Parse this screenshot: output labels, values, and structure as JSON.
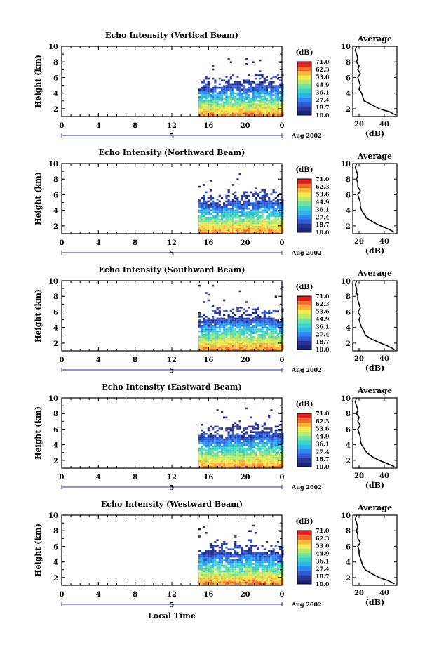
{
  "figure": {
    "xlabel": "Local Time",
    "date_label": "Aug 2002",
    "day_label": "5",
    "x_ticks": [
      "0",
      "4",
      "8",
      "12",
      "16",
      "20",
      "0"
    ],
    "y_label": "Height (km)",
    "y_ticks": [
      "2",
      "4",
      "6",
      "8",
      "10"
    ],
    "colorbar_title": "(dB)",
    "colorbar_ticks": [
      "71.0",
      "62.3",
      "53.6",
      "44.9",
      "36.1",
      "27.4",
      "18.7",
      "10.0"
    ],
    "average_title": "Average",
    "average_xlabel": "(dB)"
  },
  "chart_data": [
    {
      "type": "heatmap",
      "title": "Echo Intensity (Vertical Beam)",
      "xlabel": "",
      "ylabel": "Height (km)",
      "xlim": [
        0,
        24
      ],
      "ylim": [
        1,
        10
      ],
      "data_start_hour": 14.9,
      "echo_top_km": [
        4.6,
        4.8,
        5.0,
        4.7,
        5.1,
        4.9
      ],
      "scatter_top_km": 8.5,
      "colorbar": {
        "min": 10.0,
        "max": 71.0,
        "unit": "dB"
      },
      "average_profile": {
        "xlabel": "(dB)",
        "xticks": [
          20,
          40
        ],
        "xlim": [
          15,
          50
        ],
        "ylim": [
          1,
          10
        ],
        "height_km": [
          1.2,
          1.6,
          2.0,
          2.5,
          3.0,
          3.5,
          4.0,
          4.5,
          5.0,
          5.5,
          6.0,
          6.5,
          7.0,
          7.5,
          8.0,
          8.5,
          9.0,
          9.5,
          10.0
        ],
        "value_db": [
          49,
          44,
          36,
          30,
          24,
          23,
          22,
          20,
          21,
          20,
          19,
          21,
          19,
          20,
          18,
          19,
          18,
          17,
          18
        ]
      }
    },
    {
      "type": "heatmap",
      "title": "Echo Intensity (Northward Beam)",
      "xlabel": "",
      "ylabel": "Height (km)",
      "xlim": [
        0,
        24
      ],
      "ylim": [
        1,
        10
      ],
      "data_start_hour": 14.9,
      "echo_top_km": [
        5.0,
        4.8,
        5.2,
        4.9,
        5.3,
        5.1
      ],
      "scatter_top_km": 9.2,
      "colorbar": {
        "min": 10.0,
        "max": 71.0,
        "unit": "dB"
      },
      "average_profile": {
        "xlabel": "(dB)",
        "xticks": [
          20,
          40
        ],
        "xlim": [
          15,
          50
        ],
        "ylim": [
          1,
          10
        ],
        "height_km": [
          1.2,
          1.6,
          2.0,
          2.5,
          3.0,
          3.5,
          4.0,
          4.5,
          5.0,
          5.5,
          6.0,
          6.5,
          7.0,
          7.5,
          8.0,
          8.5,
          9.0,
          9.5,
          10.0
        ],
        "value_db": [
          48,
          43,
          37,
          31,
          26,
          24,
          22,
          21,
          21,
          20,
          19,
          21,
          19,
          19,
          18,
          19,
          18,
          17,
          18
        ]
      }
    },
    {
      "type": "heatmap",
      "title": "Echo Intensity (Southward Beam)",
      "xlabel": "",
      "ylabel": "Height (km)",
      "xlim": [
        0,
        24
      ],
      "ylim": [
        1,
        10
      ],
      "data_start_hour": 14.9,
      "echo_top_km": [
        4.8,
        5.0,
        5.4,
        5.1,
        5.2,
        4.9
      ],
      "scatter_top_km": 9.5,
      "colorbar": {
        "min": 10.0,
        "max": 71.0,
        "unit": "dB"
      },
      "average_profile": {
        "xlabel": "(dB)",
        "xticks": [
          20,
          40
        ],
        "xlim": [
          15,
          50
        ],
        "ylim": [
          1,
          10
        ],
        "height_km": [
          1.2,
          1.6,
          2.0,
          2.5,
          3.0,
          3.5,
          4.0,
          4.5,
          5.0,
          5.5,
          6.0,
          6.5,
          7.0,
          7.5,
          8.0,
          8.5,
          9.0,
          9.5,
          10.0
        ],
        "value_db": [
          48,
          43,
          37,
          30,
          25,
          24,
          22,
          21,
          20,
          21,
          19,
          21,
          20,
          19,
          19,
          18,
          18,
          17,
          18
        ]
      }
    },
    {
      "type": "heatmap",
      "title": "Echo Intensity (Eastward Beam)",
      "xlabel": "",
      "ylabel": "Height (km)",
      "xlim": [
        0,
        24
      ],
      "ylim": [
        1,
        10
      ],
      "data_start_hour": 14.9,
      "echo_top_km": [
        5.1,
        4.9,
        5.3,
        5.0,
        5.4,
        5.2
      ],
      "scatter_top_km": 8.8,
      "colorbar": {
        "min": 10.0,
        "max": 71.0,
        "unit": "dB"
      },
      "average_profile": {
        "xlabel": "(dB)",
        "xticks": [
          20,
          40
        ],
        "xlim": [
          15,
          50
        ],
        "ylim": [
          1,
          10
        ],
        "height_km": [
          1.2,
          1.6,
          2.0,
          2.5,
          3.0,
          3.5,
          4.0,
          4.5,
          5.0,
          5.5,
          6.0,
          6.5,
          7.0,
          7.5,
          8.0,
          8.5,
          9.0,
          9.5,
          10.0
        ],
        "value_db": [
          48,
          42,
          36,
          30,
          26,
          24,
          22,
          21,
          21,
          20,
          19,
          21,
          19,
          20,
          18,
          19,
          18,
          17,
          18
        ]
      }
    },
    {
      "type": "heatmap",
      "title": "Echo Intensity (Westward Beam)",
      "xlabel": "Local Time",
      "ylabel": "Height (km)",
      "xlim": [
        0,
        24
      ],
      "ylim": [
        1,
        10
      ],
      "data_start_hour": 14.9,
      "echo_top_km": [
        5.0,
        5.2,
        5.1,
        5.3,
        5.0,
        5.1
      ],
      "scatter_top_km": 9.0,
      "colorbar": {
        "min": 10.0,
        "max": 71.0,
        "unit": "dB"
      },
      "average_profile": {
        "xlabel": "(dB)",
        "xticks": [
          20,
          40
        ],
        "xlim": [
          15,
          50
        ],
        "ylim": [
          1,
          10
        ],
        "height_km": [
          1.2,
          1.6,
          2.0,
          2.5,
          3.0,
          3.5,
          4.0,
          4.5,
          5.0,
          5.5,
          6.0,
          6.5,
          7.0,
          7.5,
          8.0,
          8.5,
          9.0,
          9.5,
          10.0
        ],
        "value_db": [
          48,
          43,
          36,
          30,
          25,
          23,
          22,
          21,
          20,
          20,
          19,
          21,
          19,
          19,
          18,
          19,
          18,
          17,
          18
        ]
      }
    }
  ],
  "colors": {
    "colorbar": [
      "#1a237e",
      "#283593",
      "#2f5bd8",
      "#2e86f0",
      "#2fb6e8",
      "#3bd3c8",
      "#6ee0a0",
      "#b6e86a",
      "#f2e94e",
      "#f9b43a",
      "#f26a2a",
      "#e02020"
    ]
  }
}
